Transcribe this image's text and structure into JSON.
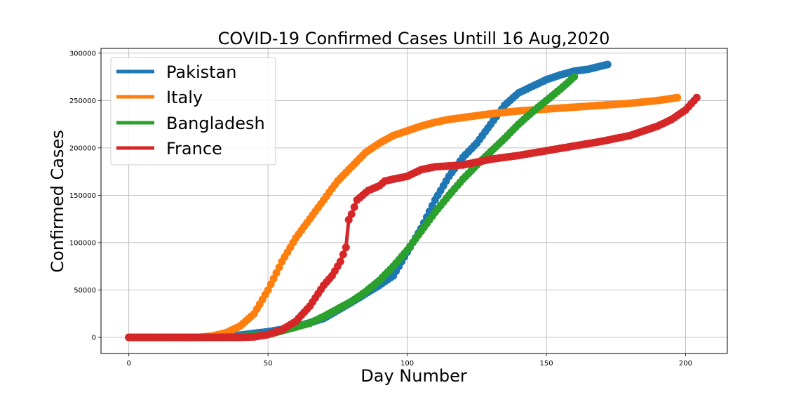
{
  "chart_data": {
    "type": "line",
    "title": "COVID-19 Confirmed Cases Untill 16 Aug,2020",
    "xlabel": "Day Number",
    "ylabel": "Confirmed Cases",
    "xlim": [
      -10,
      215
    ],
    "ylim": [
      -17000,
      305000
    ],
    "xticks": [
      0,
      50,
      100,
      150,
      200
    ],
    "xtick_labels": [
      "0",
      "50",
      "100",
      "150",
      "200"
    ],
    "yticks": [
      0,
      50000,
      100000,
      150000,
      200000,
      250000,
      300000
    ],
    "ytick_labels": [
      "0",
      "50000",
      "100000",
      "150000",
      "200000",
      "250000",
      "300000"
    ],
    "grid": true,
    "legend_position": "top-left",
    "markers": "circle",
    "series": [
      {
        "name": "Pakistan",
        "color": "#1f77b4",
        "last_day": 172,
        "points": [
          [
            0,
            0
          ],
          [
            25,
            0
          ],
          [
            30,
            500
          ],
          [
            40,
            2500
          ],
          [
            50,
            6000
          ],
          [
            60,
            11000
          ],
          [
            70,
            20000
          ],
          [
            80,
            37000
          ],
          [
            90,
            55000
          ],
          [
            95,
            65000
          ],
          [
            100,
            90000
          ],
          [
            105,
            115000
          ],
          [
            110,
            145000
          ],
          [
            115,
            170000
          ],
          [
            120,
            190000
          ],
          [
            125,
            205000
          ],
          [
            130,
            225000
          ],
          [
            135,
            245000
          ],
          [
            140,
            258000
          ],
          [
            145,
            265000
          ],
          [
            150,
            272000
          ],
          [
            155,
            277000
          ],
          [
            160,
            281000
          ],
          [
            165,
            283000
          ],
          [
            172,
            288000
          ]
        ]
      },
      {
        "name": "Italy",
        "color": "#ff7f0e",
        "last_day": 197,
        "points": [
          [
            0,
            0
          ],
          [
            25,
            0
          ],
          [
            30,
            1500
          ],
          [
            35,
            5000
          ],
          [
            40,
            12000
          ],
          [
            45,
            25000
          ],
          [
            50,
            50000
          ],
          [
            55,
            80000
          ],
          [
            60,
            105000
          ],
          [
            65,
            125000
          ],
          [
            70,
            145000
          ],
          [
            75,
            165000
          ],
          [
            80,
            180000
          ],
          [
            85,
            195000
          ],
          [
            90,
            205000
          ],
          [
            95,
            213000
          ],
          [
            100,
            218000
          ],
          [
            105,
            223000
          ],
          [
            110,
            227000
          ],
          [
            115,
            230000
          ],
          [
            120,
            232000
          ],
          [
            130,
            236000
          ],
          [
            140,
            239000
          ],
          [
            150,
            241000
          ],
          [
            160,
            243000
          ],
          [
            170,
            245000
          ],
          [
            180,
            247000
          ],
          [
            190,
            250000
          ],
          [
            197,
            253000
          ]
        ]
      },
      {
        "name": "Bangladesh",
        "color": "#2ca02c",
        "last_day": 160,
        "points": [
          [
            0,
            0
          ],
          [
            30,
            0
          ],
          [
            40,
            500
          ],
          [
            50,
            3000
          ],
          [
            55,
            7000
          ],
          [
            60,
            11000
          ],
          [
            65,
            15000
          ],
          [
            70,
            22000
          ],
          [
            75,
            30000
          ],
          [
            80,
            38000
          ],
          [
            85,
            48000
          ],
          [
            90,
            60000
          ],
          [
            95,
            75000
          ],
          [
            100,
            92000
          ],
          [
            105,
            112000
          ],
          [
            110,
            132000
          ],
          [
            115,
            150000
          ],
          [
            120,
            167000
          ],
          [
            125,
            182000
          ],
          [
            130,
            196000
          ],
          [
            135,
            210000
          ],
          [
            140,
            225000
          ],
          [
            145,
            238000
          ],
          [
            150,
            250000
          ],
          [
            155,
            262000
          ],
          [
            160,
            275000
          ]
        ]
      },
      {
        "name": "France",
        "color": "#d62728",
        "last_day": 204,
        "points": [
          [
            0,
            0
          ],
          [
            40,
            0
          ],
          [
            45,
            500
          ],
          [
            50,
            3000
          ],
          [
            55,
            8000
          ],
          [
            60,
            17000
          ],
          [
            65,
            33000
          ],
          [
            70,
            55000
          ],
          [
            73,
            65000
          ],
          [
            76,
            80000
          ],
          [
            78,
            95000
          ],
          [
            78.3,
            120000
          ],
          [
            80,
            130000
          ],
          [
            82,
            145000
          ],
          [
            84,
            150000
          ],
          [
            86,
            155000
          ],
          [
            90,
            160000
          ],
          [
            92,
            165000
          ],
          [
            95,
            167000
          ],
          [
            100,
            170000
          ],
          [
            105,
            177000
          ],
          [
            110,
            180000
          ],
          [
            120,
            182000
          ],
          [
            125,
            185000
          ],
          [
            130,
            188000
          ],
          [
            140,
            192000
          ],
          [
            150,
            197000
          ],
          [
            160,
            202000
          ],
          [
            170,
            207000
          ],
          [
            180,
            213000
          ],
          [
            190,
            223000
          ],
          [
            195,
            230000
          ],
          [
            200,
            240000
          ],
          [
            204,
            253000
          ]
        ]
      }
    ]
  }
}
